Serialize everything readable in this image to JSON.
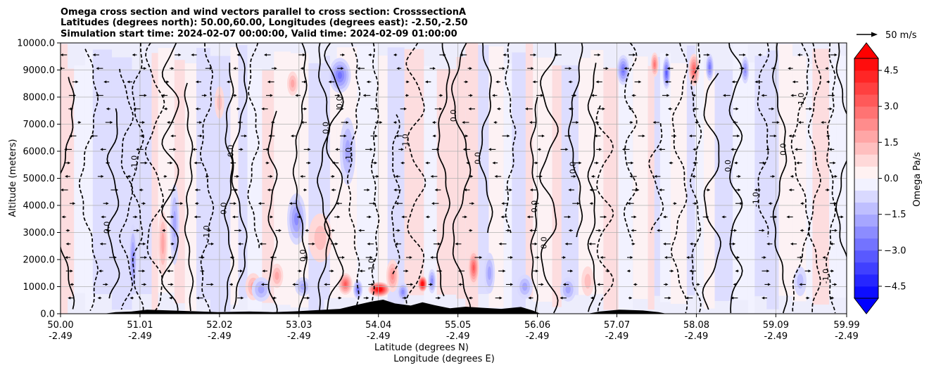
{
  "chart_data": {
    "type": "heatmap",
    "title_lines": [
      "Omega cross section and wind vectors parallel to cross section: CrosssectionA",
      "Latitudes (degrees north): 50.00,60.00, Longitudes (degrees east): -2.50,-2.50",
      "Simulation start time: 2024-02-07 00:00:00, Valid time: 2024-02-09 01:00:00"
    ],
    "xlabel_line1": "Latitude (degrees N)",
    "xlabel_line2": "Longitude (degrees E)",
    "ylabel": "Altitude (meters)",
    "xlim": [
      50.0,
      59.99
    ],
    "ylim": [
      0,
      10000
    ],
    "x_ticks": [
      {
        "lat": "50.00",
        "lon": "-2.49",
        "value": 50.0
      },
      {
        "lat": "51.01",
        "lon": "-2.49",
        "value": 51.01
      },
      {
        "lat": "52.02",
        "lon": "-2.49",
        "value": 52.02
      },
      {
        "lat": "53.03",
        "lon": "-2.49",
        "value": 53.03
      },
      {
        "lat": "54.04",
        "lon": "-2.49",
        "value": 54.04
      },
      {
        "lat": "55.05",
        "lon": "-2.49",
        "value": 55.05
      },
      {
        "lat": "56.06",
        "lon": "-2.49",
        "value": 56.06
      },
      {
        "lat": "57.07",
        "lon": "-2.49",
        "value": 57.07
      },
      {
        "lat": "58.08",
        "lon": "-2.49",
        "value": 58.08
      },
      {
        "lat": "59.09",
        "lon": "-2.49",
        "value": 59.09
      },
      {
        "lat": "59.99",
        "lon": "-2.49",
        "value": 59.99
      }
    ],
    "y_ticks": [
      {
        "label": "10000.0",
        "value": 10000
      },
      {
        "label": "9000.0",
        "value": 9000
      },
      {
        "label": "8000.0",
        "value": 8000
      },
      {
        "label": "7000.0",
        "value": 7000
      },
      {
        "label": "6000.0",
        "value": 6000
      },
      {
        "label": "5000.0",
        "value": 5000
      },
      {
        "label": "4000.0",
        "value": 4000
      },
      {
        "label": "3000.0",
        "value": 3000
      },
      {
        "label": "2000.0",
        "value": 2000
      },
      {
        "label": "1000.0",
        "value": 1000
      },
      {
        "label": "0.0",
        "value": 0
      }
    ],
    "grid": true,
    "colorbar": {
      "label": "Omega Pa/s",
      "vmin": -5.0,
      "vmax": 5.0,
      "step": 0.5,
      "extend": "both",
      "tick_values": [
        4.5,
        3.0,
        1.5,
        0.0,
        -1.5,
        -3.0,
        -4.5
      ],
      "tick_labels": [
        "4.5",
        "3.0",
        "1.5",
        "0.0",
        "−1.5",
        "−3.0",
        "−4.5"
      ],
      "colors": {
        "negative": "#0000ff",
        "neutral": "#ffffff",
        "positive": "#ff0000",
        "extend_low": "#0000ff",
        "extend_high": "#ff0000"
      }
    },
    "vector_key": {
      "label": "50 m/s",
      "speed": 50
    },
    "contour_label_text": "0.0",
    "contour_labels_neg": "-1.0",
    "contour_labels_pos": "1.0",
    "contour_label_sample": "1.0",
    "omega_features": [
      {
        "lat": 50.92,
        "alt": 2000,
        "w_lat": 0.05,
        "h_alt": 2600,
        "value": -1.8
      },
      {
        "lat": 51.3,
        "alt": 2600,
        "w_lat": 0.06,
        "h_alt": 2400,
        "value": 1.4
      },
      {
        "lat": 51.45,
        "alt": 3300,
        "w_lat": 0.06,
        "h_alt": 3000,
        "value": -1.5
      },
      {
        "lat": 52.02,
        "alt": 7800,
        "w_lat": 0.06,
        "h_alt": 1200,
        "value": 1.2
      },
      {
        "lat": 52.45,
        "alt": 1000,
        "w_lat": 0.1,
        "h_alt": 1000,
        "value": 1.3
      },
      {
        "lat": 52.55,
        "alt": 900,
        "w_lat": 0.12,
        "h_alt": 900,
        "value": -1.6
      },
      {
        "lat": 52.75,
        "alt": 1400,
        "w_lat": 0.08,
        "h_alt": 900,
        "value": 1.6
      },
      {
        "lat": 52.95,
        "alt": 8500,
        "w_lat": 0.07,
        "h_alt": 900,
        "value": 1.6
      },
      {
        "lat": 53.0,
        "alt": 3500,
        "w_lat": 0.12,
        "h_alt": 1900,
        "value": -2.2
      },
      {
        "lat": 53.08,
        "alt": 1000,
        "w_lat": 0.1,
        "h_alt": 700,
        "value": -1.4
      },
      {
        "lat": 53.3,
        "alt": 2800,
        "w_lat": 0.15,
        "h_alt": 1800,
        "value": 1.0
      },
      {
        "lat": 53.55,
        "alt": 8800,
        "w_lat": 0.14,
        "h_alt": 1300,
        "value": -2.6
      },
      {
        "lat": 53.65,
        "alt": 6000,
        "w_lat": 0.1,
        "h_alt": 2500,
        "value": -1.3
      },
      {
        "lat": 53.62,
        "alt": 1100,
        "w_lat": 0.09,
        "h_alt": 800,
        "value": 3.2
      },
      {
        "lat": 53.78,
        "alt": 900,
        "w_lat": 0.06,
        "h_alt": 700,
        "value": -2.5
      },
      {
        "lat": 54.05,
        "alt": 900,
        "w_lat": 0.14,
        "h_alt": 550,
        "value": 5.6
      },
      {
        "lat": 54.22,
        "alt": 1400,
        "w_lat": 0.08,
        "h_alt": 1200,
        "value": 2.0
      },
      {
        "lat": 54.35,
        "alt": 800,
        "w_lat": 0.07,
        "h_alt": 700,
        "value": -1.8
      },
      {
        "lat": 54.6,
        "alt": 1100,
        "w_lat": 0.06,
        "h_alt": 600,
        "value": 5.4
      },
      {
        "lat": 54.72,
        "alt": 1200,
        "w_lat": 0.05,
        "h_alt": 900,
        "value": -2.0
      },
      {
        "lat": 55.25,
        "alt": 1700,
        "w_lat": 0.07,
        "h_alt": 1300,
        "value": 3.0
      },
      {
        "lat": 55.45,
        "alt": 1500,
        "w_lat": 0.07,
        "h_alt": 1500,
        "value": -1.5
      },
      {
        "lat": 55.9,
        "alt": 1000,
        "w_lat": 0.1,
        "h_alt": 900,
        "value": -1.4
      },
      {
        "lat": 56.45,
        "alt": 900,
        "w_lat": 0.1,
        "h_alt": 900,
        "value": -1.4
      },
      {
        "lat": 56.7,
        "alt": 1200,
        "w_lat": 0.08,
        "h_alt": 1100,
        "value": 1.2
      },
      {
        "lat": 57.15,
        "alt": 9000,
        "w_lat": 0.08,
        "h_alt": 1100,
        "value": -2.4
      },
      {
        "lat": 57.55,
        "alt": 9200,
        "w_lat": 0.05,
        "h_alt": 900,
        "value": 2.4
      },
      {
        "lat": 57.7,
        "alt": 8900,
        "w_lat": 0.05,
        "h_alt": 1200,
        "value": -2.8
      },
      {
        "lat": 58.05,
        "alt": 9000,
        "w_lat": 0.07,
        "h_alt": 1200,
        "value": 3.0
      },
      {
        "lat": 58.25,
        "alt": 9100,
        "w_lat": 0.05,
        "h_alt": 1000,
        "value": -2.6
      },
      {
        "lat": 58.7,
        "alt": 9000,
        "w_lat": 0.05,
        "h_alt": 1000,
        "value": -2.2
      },
      {
        "lat": 59.4,
        "alt": 1200,
        "w_lat": 0.08,
        "h_alt": 1100,
        "value": -1.2
      }
    ],
    "terrain": [
      {
        "lat": 50.0,
        "alt": 0
      },
      {
        "lat": 50.55,
        "alt": 0
      },
      {
        "lat": 50.7,
        "alt": 60
      },
      {
        "lat": 50.9,
        "alt": 80
      },
      {
        "lat": 51.1,
        "alt": 150
      },
      {
        "lat": 51.4,
        "alt": 120
      },
      {
        "lat": 51.7,
        "alt": 90
      },
      {
        "lat": 52.0,
        "alt": 60
      },
      {
        "lat": 52.4,
        "alt": 80
      },
      {
        "lat": 52.7,
        "alt": 60
      },
      {
        "lat": 53.0,
        "alt": 90
      },
      {
        "lat": 53.3,
        "alt": 140
      },
      {
        "lat": 53.55,
        "alt": 180
      },
      {
        "lat": 53.75,
        "alt": 320
      },
      {
        "lat": 53.95,
        "alt": 450
      },
      {
        "lat": 54.1,
        "alt": 520
      },
      {
        "lat": 54.25,
        "alt": 380
      },
      {
        "lat": 54.45,
        "alt": 300
      },
      {
        "lat": 54.6,
        "alt": 420
      },
      {
        "lat": 54.75,
        "alt": 320
      },
      {
        "lat": 54.95,
        "alt": 200
      },
      {
        "lat": 55.15,
        "alt": 260
      },
      {
        "lat": 55.35,
        "alt": 220
      },
      {
        "lat": 55.6,
        "alt": 180
      },
      {
        "lat": 55.85,
        "alt": 250
      },
      {
        "lat": 56.0,
        "alt": 120
      },
      {
        "lat": 56.1,
        "alt": 0
      },
      {
        "lat": 56.7,
        "alt": 0
      },
      {
        "lat": 56.85,
        "alt": 80
      },
      {
        "lat": 57.1,
        "alt": 150
      },
      {
        "lat": 57.4,
        "alt": 120
      },
      {
        "lat": 57.6,
        "alt": 60
      },
      {
        "lat": 57.7,
        "alt": 0
      },
      {
        "lat": 59.99,
        "alt": 0
      }
    ]
  }
}
